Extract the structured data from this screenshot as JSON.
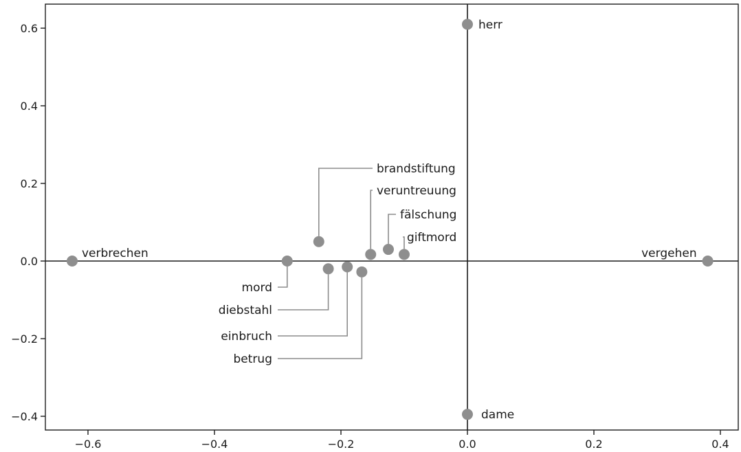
{
  "chart_data": {
    "type": "scatter",
    "title": "",
    "xlabel": "",
    "ylabel": "",
    "xlim": [
      -0.62,
      0.4
    ],
    "ylim": [
      -0.4,
      0.6
    ],
    "xticks": [
      -0.6,
      -0.4,
      -0.2,
      0.0,
      0.2,
      0.4
    ],
    "yticks": [
      -0.4,
      -0.2,
      0.0,
      0.2,
      0.4,
      0.6
    ],
    "xtick_labels": [
      "−0.6",
      "−0.4",
      "−0.2",
      "0.0",
      "0.2",
      "0.4"
    ],
    "ytick_labels": [
      "−0.4",
      "−0.2",
      "0.0",
      "0.2",
      "0.4",
      "0.6"
    ],
    "grid": false,
    "zero_lines": true,
    "point_color": "#8e8e8e",
    "points": [
      {
        "label": "herr",
        "x": 0.0,
        "y": 0.61
      },
      {
        "label": "dame",
        "x": 0.0,
        "y": -0.395
      },
      {
        "label": "verbrechen",
        "x": -0.625,
        "y": 0.0
      },
      {
        "label": "vergehen",
        "x": 0.38,
        "y": 0.0
      },
      {
        "label": "mord",
        "x": -0.285,
        "y": 0.0
      },
      {
        "label": "brandstiftung",
        "x": -0.235,
        "y": 0.05
      },
      {
        "label": "veruntreuung",
        "x": -0.153,
        "y": 0.017
      },
      {
        "label": "fälschung",
        "x": -0.125,
        "y": 0.03
      },
      {
        "label": "giftmord",
        "x": -0.1,
        "y": 0.017
      },
      {
        "label": "diebstahl",
        "x": -0.22,
        "y": -0.02
      },
      {
        "label": "einbruch",
        "x": -0.19,
        "y": -0.015
      },
      {
        "label": "betrug",
        "x": -0.167,
        "y": -0.028
      }
    ]
  }
}
